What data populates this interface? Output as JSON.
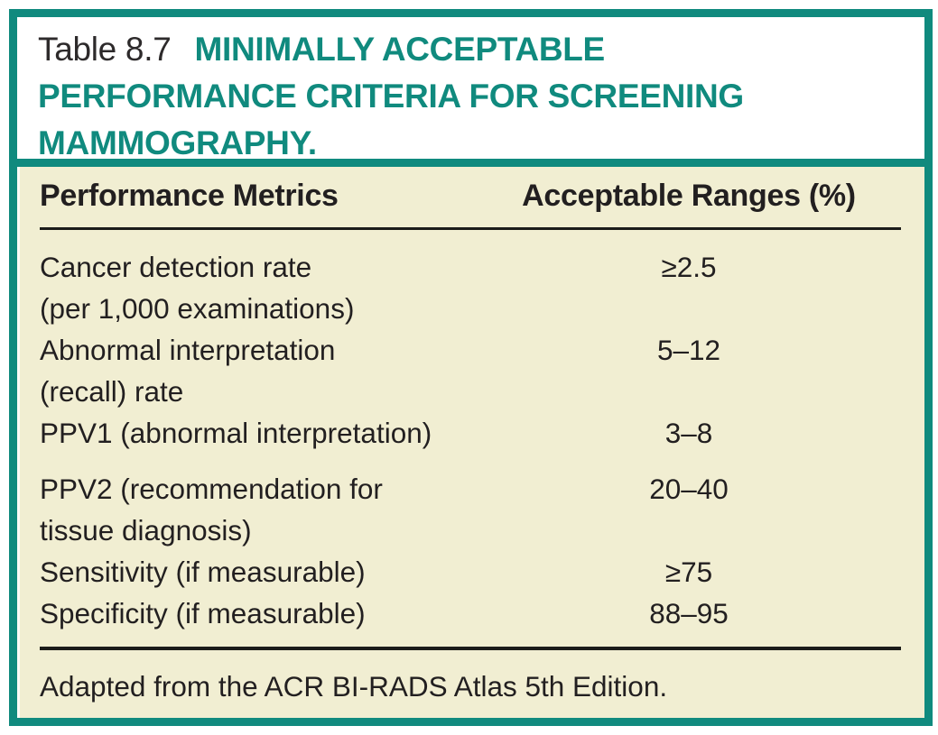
{
  "table": {
    "caption": {
      "prefix": "Table 8.7",
      "title": "MINIMALLY ACCEPTABLE\nPERFORMANCE CRITERIA FOR SCREENING\nMAMMOGRAPHY."
    },
    "header": {
      "metric": "Performance Metrics",
      "range": "Acceptable Ranges (%)"
    },
    "rows": [
      {
        "metric": "Cancer detection rate\n(per 1,000 examinations)",
        "range": "≥2.5"
      },
      {
        "metric": "Abnormal interpretation\n(recall) rate",
        "range": "5–12"
      },
      {
        "metric": "PPV1 (abnormal interpretation)",
        "range": "3–8"
      },
      {
        "metric": "PPV2 (recommendation for\ntissue diagnosis)",
        "range": "20–40"
      },
      {
        "metric": "Sensitivity (if measurable)",
        "range": "≥75"
      },
      {
        "metric": "Specificity (if measurable)",
        "range": "88–95"
      }
    ],
    "footnote": "Adapted from the ACR BI-RADS Atlas 5th Edition.",
    "colors": {
      "accent_teal": "#108a7e",
      "body_background": "#f1eed2",
      "text_black": "#221f20"
    }
  }
}
